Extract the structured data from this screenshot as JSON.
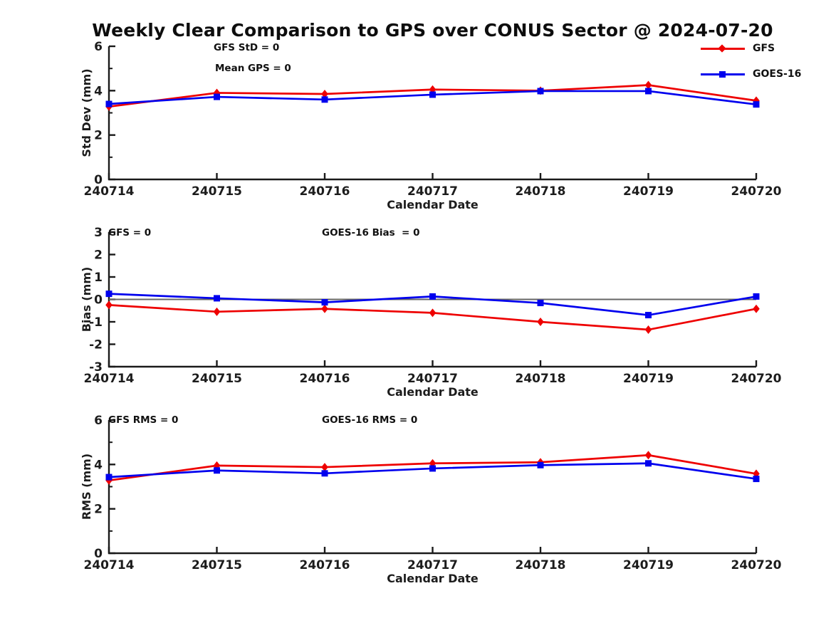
{
  "title": "Weekly Clear Comparison to GPS over CONUS Sector @ 2024-07-20",
  "colors": {
    "gfs_red": "#ee0000",
    "goes_blue": "#0000ee",
    "axis": "#1a1a1a",
    "zero_line": "#666666",
    "background": "#ffffff"
  },
  "legend": {
    "position": "top-right",
    "items": [
      {
        "label": "GFS",
        "marker": "diamond",
        "color": "#ee0000"
      },
      {
        "label": "GOES-16",
        "marker": "square",
        "color": "#0000ee"
      }
    ]
  },
  "chart_data": [
    {
      "type": "line",
      "title": "",
      "xlabel": "Calendar Date",
      "ylabel": "Std Dev (mm)",
      "categories": [
        "240714",
        "240715",
        "240716",
        "240717",
        "240718",
        "240719",
        "240720"
      ],
      "ylim": [
        0,
        6
      ],
      "yticks": [
        0,
        2,
        4,
        6
      ],
      "yticks_minor": [
        1,
        3,
        5
      ],
      "grid": false,
      "zero_line": false,
      "annotations": [
        {
          "text": "GFS StD = 0",
          "x": 300,
          "y": 21
        },
        {
          "text": "Mean GPS = 0",
          "x": 302,
          "y": 50
        }
      ],
      "series": [
        {
          "name": "GFS",
          "color": "#ee0000",
          "marker": "diamond",
          "values": [
            3.28,
            3.9,
            3.85,
            4.05,
            4.0,
            4.25,
            3.55
          ]
        },
        {
          "name": "GOES-16",
          "color": "#0000ee",
          "marker": "square",
          "values": [
            3.4,
            3.72,
            3.6,
            3.82,
            3.98,
            3.98,
            3.38
          ]
        }
      ]
    },
    {
      "type": "line",
      "title": "",
      "xlabel": "Calendar Date",
      "ylabel": "Bias (mm)",
      "categories": [
        "240714",
        "240715",
        "240716",
        "240717",
        "240718",
        "240719",
        "240720"
      ],
      "ylim": [
        -3,
        3
      ],
      "yticks": [
        -3,
        -2,
        -1,
        0,
        1,
        2,
        3
      ],
      "yticks_minor": [],
      "grid": false,
      "zero_line": true,
      "annotations": [
        {
          "text": "GFS = 0",
          "x": 152,
          "y": 21
        },
        {
          "text": "GOES-16 Bias  = 0",
          "x": 452,
          "y": 21
        }
      ],
      "series": [
        {
          "name": "GFS",
          "color": "#ee0000",
          "marker": "diamond",
          "values": [
            -0.25,
            -0.55,
            -0.42,
            -0.6,
            -1.0,
            -1.35,
            -0.42
          ]
        },
        {
          "name": "GOES-16",
          "color": "#0000ee",
          "marker": "square",
          "values": [
            0.25,
            0.05,
            -0.13,
            0.13,
            -0.16,
            -0.7,
            0.13
          ]
        }
      ]
    },
    {
      "type": "line",
      "title": "",
      "xlabel": "Calendar Date",
      "ylabel": "RMS (mm)",
      "categories": [
        "240714",
        "240715",
        "240716",
        "240717",
        "240718",
        "240719",
        "240720"
      ],
      "ylim": [
        0,
        6
      ],
      "yticks": [
        0,
        2,
        4,
        6
      ],
      "yticks_minor": [
        1,
        3,
        5
      ],
      "grid": false,
      "zero_line": false,
      "annotations": [
        {
          "text": "GFS RMS = 0",
          "x": 152,
          "y": 19
        },
        {
          "text": "GOES-16 RMS = 0",
          "x": 452,
          "y": 19
        }
      ],
      "series": [
        {
          "name": "GFS",
          "color": "#ee0000",
          "marker": "diamond",
          "values": [
            3.28,
            3.95,
            3.88,
            4.05,
            4.1,
            4.42,
            3.58
          ]
        },
        {
          "name": "GOES-16",
          "color": "#0000ee",
          "marker": "square",
          "values": [
            3.43,
            3.73,
            3.6,
            3.82,
            3.97,
            4.05,
            3.35
          ]
        }
      ]
    }
  ]
}
